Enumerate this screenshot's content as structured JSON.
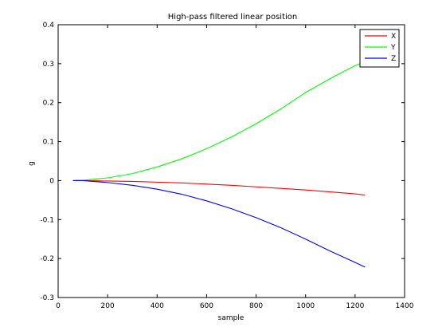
{
  "chart_data": {
    "type": "line",
    "title": "High-pass filtered linear position",
    "xlabel": "sample",
    "ylabel": "g",
    "xlim": [
      0,
      1400
    ],
    "ylim": [
      -0.3,
      0.4
    ],
    "xticks": [
      0,
      200,
      400,
      600,
      800,
      1000,
      1200,
      1400
    ],
    "yticks": [
      -0.3,
      -0.2,
      -0.1,
      0,
      0.1,
      0.2,
      0.3,
      0.4
    ],
    "xtick_labels": [
      "0",
      "200",
      "400",
      "600",
      "800",
      "1000",
      "1200",
      "1400"
    ],
    "ytick_labels": [
      "-0.3",
      "-0.2",
      "-0.1",
      "0",
      "0.1",
      "0.2",
      "0.3",
      "0.4"
    ],
    "grid": false,
    "legend_position": "top-right",
    "x": [
      60,
      100,
      200,
      300,
      400,
      500,
      600,
      700,
      800,
      900,
      1000,
      1100,
      1200,
      1240
    ],
    "series": [
      {
        "name": "X",
        "color": "#ff0000",
        "values": [
          0,
          0,
          -0.001,
          -0.002,
          -0.004,
          -0.006,
          -0.009,
          -0.012,
          -0.016,
          -0.02,
          -0.024,
          -0.029,
          -0.034,
          -0.037
        ]
      },
      {
        "name": "Y",
        "color": "#00ff00",
        "values": [
          0,
          0.001,
          0.007,
          0.018,
          0.035,
          0.056,
          0.082,
          0.112,
          0.146,
          0.184,
          0.226,
          0.262,
          0.295,
          0.305
        ]
      },
      {
        "name": "Z",
        "color": "#0000ff",
        "values": [
          0,
          0,
          -0.005,
          -0.012,
          -0.022,
          -0.035,
          -0.052,
          -0.072,
          -0.095,
          -0.121,
          -0.15,
          -0.181,
          -0.21,
          -0.222
        ]
      }
    ]
  }
}
